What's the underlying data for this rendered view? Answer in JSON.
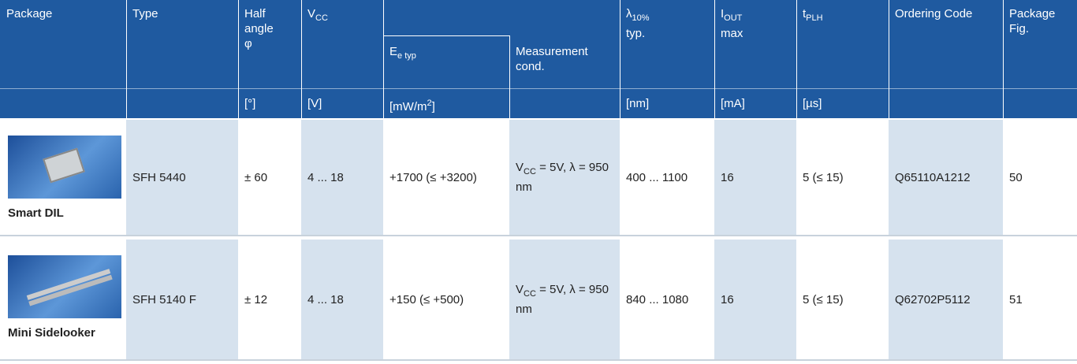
{
  "header": {
    "columns": [
      {
        "label": "Package"
      },
      {
        "label": "Type"
      },
      {
        "label": "Half angle",
        "symbol": "φ",
        "unit": "[°]"
      },
      {
        "label": "V",
        "label_sub": "CC",
        "unit": "[V]"
      },
      {
        "label": "E",
        "label_sub": "e typ",
        "unit": "[mW/m",
        "unit_sup": "2",
        "unit_end": "]"
      },
      {
        "label": "Measurement cond."
      },
      {
        "label": "λ",
        "label_sub": "10%",
        "label_2": "typ.",
        "unit": "[nm]"
      },
      {
        "label": "I",
        "label_sub": "OUT",
        "label_2": "max",
        "unit": "[mA]"
      },
      {
        "label": "t",
        "label_sub": "PLH",
        "unit": "[µs]"
      },
      {
        "label": "Ordering Code"
      },
      {
        "label": "Package Fig."
      }
    ]
  },
  "rows": [
    {
      "package": "Smart DIL",
      "type": "SFH 5440",
      "angle": "± 60",
      "vcc": "4 ... 18",
      "ee": "+1700 (≤ +3200)",
      "meas": "V",
      "meas_sub": "CC",
      "meas_rest": " = 5V, λ = 950 nm",
      "lambda": "400 ... 1100",
      "iout": "16",
      "tplh": "5 (≤ 15)",
      "code": "Q65110A1212",
      "fig": "50"
    },
    {
      "package": "Mini Sidelooker",
      "type": "SFH 5140 F",
      "angle": "± 12",
      "vcc": "4 ... 18",
      "ee": "+150 (≤ +500)",
      "meas": "V",
      "meas_sub": "CC",
      "meas_rest": " = 5V, λ = 950 nm",
      "lambda": "840 ... 1080",
      "iout": "16",
      "tplh": "5 (≤ 15)",
      "code": "Q62702P5112",
      "fig": "51"
    }
  ]
}
